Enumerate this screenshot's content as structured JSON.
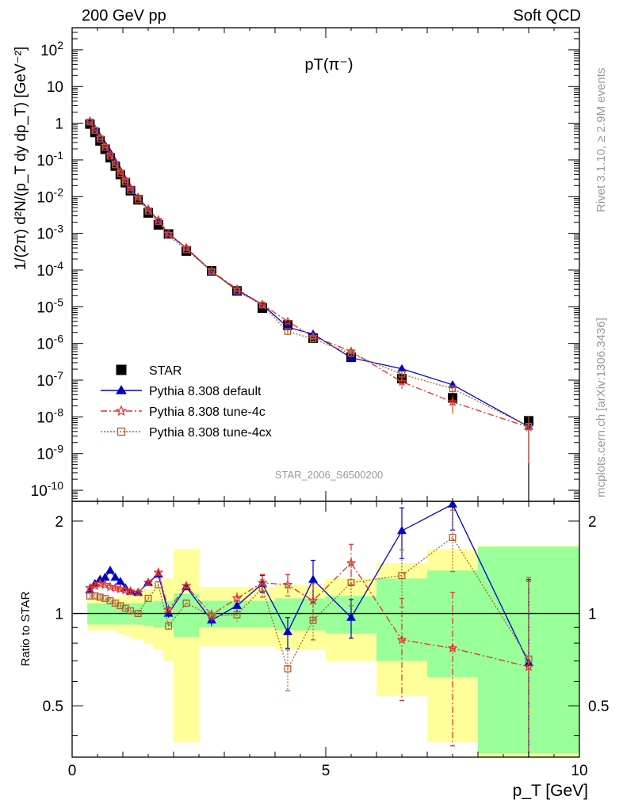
{
  "header": {
    "left": "200 GeV pp",
    "right": "Soft QCD",
    "plot_label": "pT(π⁻)",
    "analysis_id": "STAR_2006_S6500200"
  },
  "side_labels": {
    "rivet": "Rivet 3.1.10, ≥ 2.9M events",
    "mcplots": "mcplots.cern.ch [arXiv:1306.3436]"
  },
  "colors": {
    "star": "#000000",
    "default": "#0000cc",
    "tune4c": "#e03030",
    "tune4cx": "#b0602a",
    "band_inner": "#99ff99",
    "band_outer": "#ffff99"
  },
  "chart_data": {
    "type": "scatter",
    "xlabel": "p_T [GeV]",
    "ylabel_main": "1/(2π) d²N/(p_T dy dp_T) [GeV⁻²]",
    "ylabel_ratio": "Ratio to STAR",
    "x_range": [
      0,
      10
    ],
    "y_main_range": [
      5e-11,
      400
    ],
    "y_main_scale": "log",
    "y_ratio_range": [
      0.34,
      2.32
    ],
    "y_ratio_scale": "log",
    "x_ticks": [
      0,
      5,
      10
    ],
    "y_main_ticks": [
      "10^{-10}",
      "10^{-9}",
      "10^{-8}",
      "10^{-7}",
      "10^{-6}",
      "10^{-5}",
      "10^{-4}",
      "10^{-3}",
      "10^{-2}",
      "10^{-1}",
      "1",
      "10",
      "10^{2}"
    ],
    "y_ratio_ticks": [
      "0.5",
      "1",
      "2"
    ],
    "legend_position": "bottom-left",
    "x": [
      0.35,
      0.45,
      0.55,
      0.65,
      0.75,
      0.85,
      0.95,
      1.05,
      1.15,
      1.3,
      1.5,
      1.7,
      1.9,
      2.25,
      2.75,
      3.25,
      3.75,
      4.25,
      4.75,
      5.5,
      6.5,
      7.5,
      9.0
    ],
    "bin_edges": [
      0.3,
      0.4,
      0.5,
      0.6,
      0.7,
      0.8,
      0.9,
      1.0,
      1.1,
      1.2,
      1.4,
      1.6,
      1.8,
      2.0,
      2.5,
      3.0,
      3.5,
      4.0,
      4.5,
      5.0,
      6.0,
      7.0,
      8.0,
      10.0
    ],
    "star": {
      "name": "STAR",
      "values": [
        0.95,
        0.56,
        0.33,
        0.195,
        0.115,
        0.068,
        0.04,
        0.024,
        0.0145,
        0.0082,
        0.0036,
        0.0017,
        0.00096,
        0.00033,
        9.5e-05,
        2.7e-05,
        9.2e-06,
        3.2e-06,
        1.4e-06,
        4.2e-07,
        1.1e-07,
        3.3e-08,
        7.8e-09
      ],
      "band_inner_ratio_err": [
        0.08,
        0.08,
        0.08,
        0.08,
        0.08,
        0.08,
        0.08,
        0.08,
        0.08,
        0.08,
        0.09,
        0.1,
        0.1,
        0.16,
        0.1,
        0.1,
        0.1,
        0.12,
        0.12,
        0.14,
        0.3,
        0.38,
        0.65
      ],
      "band_outer_ratio_err": [
        0.12,
        0.12,
        0.12,
        0.12,
        0.12,
        0.12,
        0.14,
        0.15,
        0.16,
        0.18,
        0.2,
        0.24,
        0.3,
        0.62,
        0.22,
        0.22,
        0.22,
        0.24,
        0.24,
        0.3,
        0.46,
        0.62,
        0.66
      ]
    },
    "series": [
      {
        "name": "Pythia 8.308 default",
        "marker": "triangle",
        "style": "solid",
        "ratio": [
          1.19,
          1.25,
          1.29,
          1.31,
          1.38,
          1.31,
          1.27,
          1.21,
          1.18,
          1.17,
          1.26,
          1.34,
          1.0,
          1.22,
          0.95,
          1.06,
          1.25,
          0.87,
          1.29,
          0.97,
          1.86,
          2.27,
          0.69
        ],
        "ratio_err": [
          0.02,
          0.02,
          0.02,
          0.02,
          0.02,
          0.02,
          0.02,
          0.02,
          0.02,
          0.02,
          0.03,
          0.03,
          0.03,
          0.03,
          0.04,
          0.05,
          0.08,
          0.1,
          0.2,
          0.14,
          0.35,
          0.4,
          0.6
        ]
      },
      {
        "name": "Pythia 8.308 tune-4c",
        "marker": "star",
        "style": "dash-dot",
        "ratio": [
          1.21,
          1.23,
          1.25,
          1.24,
          1.22,
          1.21,
          1.2,
          1.19,
          1.18,
          1.17,
          1.26,
          1.36,
          1.03,
          1.23,
          0.99,
          1.12,
          1.26,
          1.24,
          1.1,
          1.46,
          0.82,
          0.77,
          0.67
        ],
        "ratio_err": [
          0.02,
          0.02,
          0.02,
          0.02,
          0.02,
          0.02,
          0.02,
          0.02,
          0.02,
          0.02,
          0.03,
          0.03,
          0.03,
          0.03,
          0.04,
          0.05,
          0.08,
          0.1,
          0.15,
          0.22,
          0.3,
          0.4,
          0.6
        ]
      },
      {
        "name": "Pythia 8.308 tune-4cx",
        "marker": "square-open",
        "style": "dotted",
        "ratio": [
          1.14,
          1.14,
          1.13,
          1.12,
          1.1,
          1.08,
          1.06,
          1.04,
          1.02,
          1.0,
          1.12,
          1.24,
          0.91,
          1.08,
          0.98,
          0.99,
          1.21,
          0.66,
          0.95,
          1.26,
          1.33,
          1.77,
          0.71
        ],
        "ratio_err": [
          0.02,
          0.02,
          0.02,
          0.02,
          0.02,
          0.02,
          0.02,
          0.02,
          0.02,
          0.02,
          0.03,
          0.03,
          0.03,
          0.03,
          0.04,
          0.05,
          0.08,
          0.1,
          0.13,
          0.2,
          0.28,
          0.4,
          0.6
        ]
      }
    ]
  }
}
